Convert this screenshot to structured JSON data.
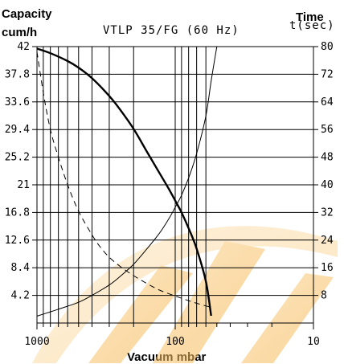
{
  "chart_data": {
    "type": "line",
    "title": "VTLP 35/FG (60 Hz)",
    "xlabel": "Vacuum mbar",
    "ylabel_left_line1": "Capacity",
    "ylabel_left_line2": "cum/h",
    "ylabel_right_line1": "Time",
    "ylabel_right_line2": "t(sec)",
    "x_scale": "log",
    "x_reversed": true,
    "xlim": [
      1000,
      10
    ],
    "x_ticks": [
      {
        "value": 1000,
        "label": "1000"
      },
      {
        "value": 100,
        "label": "100"
      },
      {
        "value": 10,
        "label": "10"
      }
    ],
    "ylim_left": [
      0,
      42
    ],
    "yticks_left": [
      "42",
      "37.8",
      "33.6",
      "29.4",
      "25.2",
      "21",
      "16.8",
      "12.6",
      "8.4",
      "4.2"
    ],
    "yticks_left_values": [
      42,
      37.8,
      33.6,
      29.4,
      25.2,
      21,
      16.8,
      12.6,
      8.4,
      4.2
    ],
    "ylim_right": [
      0,
      80
    ],
    "yticks_right": [
      "80",
      "72",
      "64",
      "56",
      "48",
      "40",
      "32",
      "24",
      "16",
      "8"
    ],
    "yticks_right_values": [
      80,
      72,
      64,
      56,
      48,
      40,
      32,
      24,
      16,
      8
    ],
    "grid": true,
    "watermark_color": "#f5b041",
    "series": [
      {
        "axis": "left",
        "style": "thick-solid",
        "x": [
          1000,
          800,
          600,
          500,
          400,
          300,
          250,
          200,
          160,
          130,
          110,
          100,
          90,
          80,
          70,
          60,
          55
        ],
        "y": [
          41.7,
          41,
          39.8,
          38.8,
          37.2,
          34.5,
          32.4,
          29.5,
          26,
          22.8,
          20.2,
          18.6,
          16.8,
          14.4,
          11.3,
          6.3,
          1.1
        ]
      },
      {
        "axis": "right",
        "style": "thin-solid",
        "x": [
          1000,
          700,
          500,
          400,
          300,
          250,
          200,
          160,
          130,
          110,
          100,
          90,
          80,
          70,
          60,
          55,
          50
        ],
        "y": [
          2,
          4,
          6,
          8,
          11,
          13.5,
          17,
          21.5,
          26,
          30.5,
          33.5,
          37,
          42,
          49,
          60,
          70,
          80
        ]
      },
      {
        "axis": "left",
        "style": "dashed",
        "x": [
          1000,
          900,
          800,
          700,
          600,
          500,
          400,
          350,
          300,
          250,
          200,
          160,
          130,
          100,
          80,
          70,
          60,
          55
        ],
        "y": [
          41.2,
          35,
          29.4,
          25.2,
          21,
          17,
          13.4,
          11.6,
          10,
          8.6,
          7.2,
          6,
          5,
          4.1,
          3.4,
          3,
          2.6,
          2.4
        ]
      }
    ]
  }
}
